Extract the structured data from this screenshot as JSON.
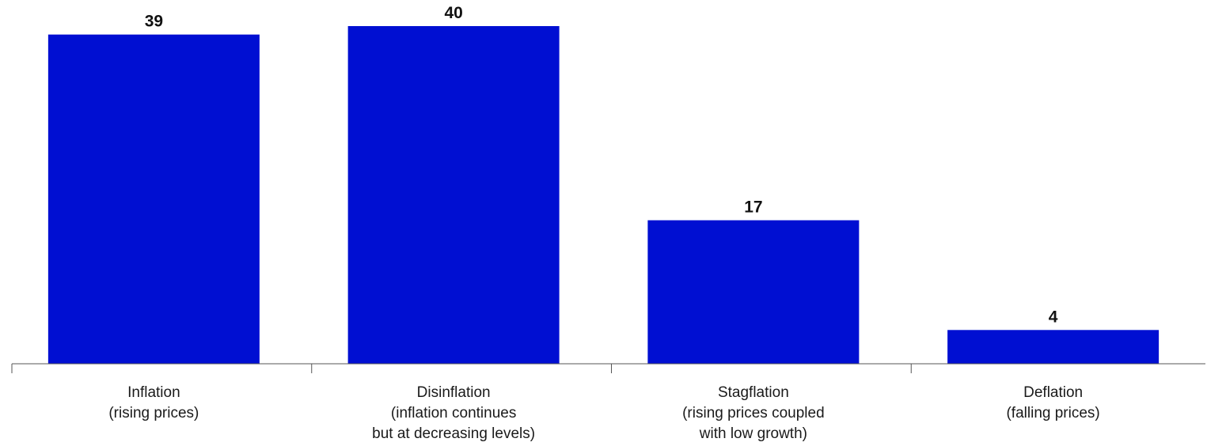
{
  "chart_data": {
    "type": "bar",
    "categories": [
      [
        "Inflation",
        "(rising prices)"
      ],
      [
        "Disinflation",
        "(inflation continues",
        "but at decreasing levels)"
      ],
      [
        "Stagflation",
        "(rising prices coupled",
        "with low growth)"
      ],
      [
        "Deflation",
        "(falling prices)"
      ]
    ],
    "values": [
      39,
      40,
      17,
      4
    ],
    "data_labels": [
      "39",
      "40",
      "17",
      "4"
    ],
    "title": "",
    "xlabel": "",
    "ylabel": "",
    "ylim": [
      0,
      40
    ],
    "grid": false,
    "bar_color": "#000fd2"
  }
}
